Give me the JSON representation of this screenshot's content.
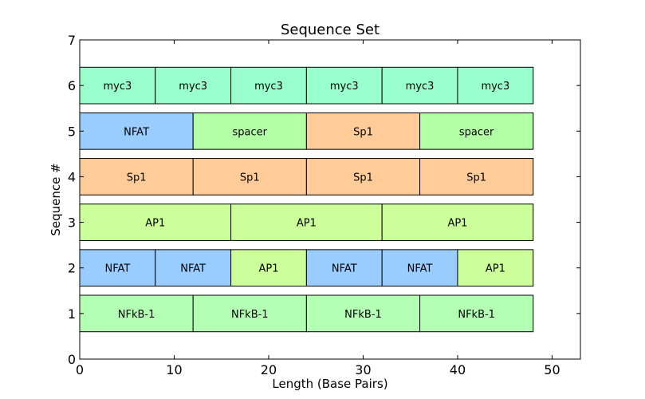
{
  "chart_data": {
    "type": "bar",
    "orientation": "horizontal-stacked",
    "title": "Sequence Set",
    "xlabel": "Length (Base Pairs)",
    "ylabel": "Sequence #",
    "xlim": [
      0,
      53
    ],
    "ylim": [
      0,
      7
    ],
    "xticks": [
      "0",
      "10",
      "20",
      "30",
      "40",
      "50"
    ],
    "yticks": [
      "0",
      "1",
      "2",
      "3",
      "4",
      "5",
      "6",
      "7"
    ],
    "grid": false,
    "colors": {
      "NFkB-1": "#b3ffb3",
      "NFAT": "#99ccff",
      "AP1": "#ccff99",
      "Sp1": "#ffcc99",
      "spacer": "#b3ffa6",
      "myc3": "#99ffcc"
    },
    "sequences": [
      {
        "y": 1,
        "segments": [
          {
            "label": "NFkB-1",
            "start": 0,
            "length": 12
          },
          {
            "label": "NFkB-1",
            "start": 12,
            "length": 12
          },
          {
            "label": "NFkB-1",
            "start": 24,
            "length": 12
          },
          {
            "label": "NFkB-1",
            "start": 36,
            "length": 12
          }
        ]
      },
      {
        "y": 2,
        "segments": [
          {
            "label": "NFAT",
            "start": 0,
            "length": 8
          },
          {
            "label": "NFAT",
            "start": 8,
            "length": 8
          },
          {
            "label": "AP1",
            "start": 16,
            "length": 8
          },
          {
            "label": "NFAT",
            "start": 24,
            "length": 8
          },
          {
            "label": "NFAT",
            "start": 32,
            "length": 8
          },
          {
            "label": "AP1",
            "start": 40,
            "length": 8
          }
        ]
      },
      {
        "y": 3,
        "segments": [
          {
            "label": "AP1",
            "start": 0,
            "length": 16
          },
          {
            "label": "AP1",
            "start": 16,
            "length": 16
          },
          {
            "label": "AP1",
            "start": 32,
            "length": 16
          }
        ]
      },
      {
        "y": 4,
        "segments": [
          {
            "label": "Sp1",
            "start": 0,
            "length": 12
          },
          {
            "label": "Sp1",
            "start": 12,
            "length": 12
          },
          {
            "label": "Sp1",
            "start": 24,
            "length": 12
          },
          {
            "label": "Sp1",
            "start": 36,
            "length": 12
          }
        ]
      },
      {
        "y": 5,
        "segments": [
          {
            "label": "NFAT",
            "start": 0,
            "length": 12
          },
          {
            "label": "spacer",
            "start": 12,
            "length": 12
          },
          {
            "label": "Sp1",
            "start": 24,
            "length": 12
          },
          {
            "label": "spacer",
            "start": 36,
            "length": 12
          }
        ]
      },
      {
        "y": 6,
        "segments": [
          {
            "label": "myc3",
            "start": 0,
            "length": 8
          },
          {
            "label": "myc3",
            "start": 8,
            "length": 8
          },
          {
            "label": "myc3",
            "start": 16,
            "length": 8
          },
          {
            "label": "myc3",
            "start": 24,
            "length": 8
          },
          {
            "label": "myc3",
            "start": 32,
            "length": 8
          },
          {
            "label": "myc3",
            "start": 40,
            "length": 8
          }
        ]
      }
    ]
  }
}
